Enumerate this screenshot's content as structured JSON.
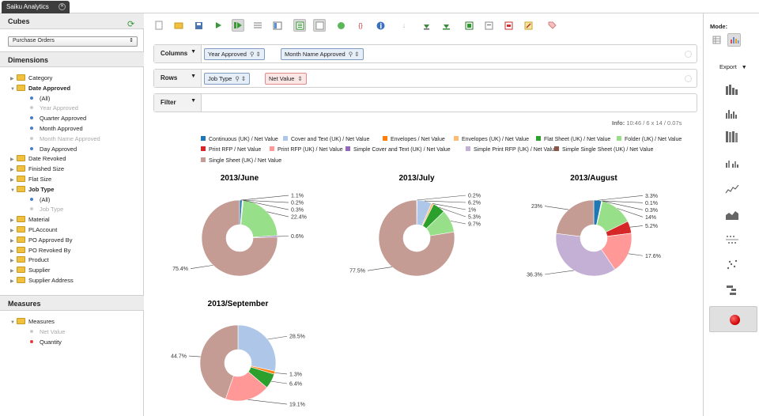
{
  "app": {
    "tab_title": "Saiku Analytics"
  },
  "cubes": {
    "title": "Cubes",
    "selected": "Purchase Orders"
  },
  "dimensions": {
    "title": "Dimensions",
    "items": [
      {
        "label": "Category",
        "type": "folder",
        "expanded": false
      },
      {
        "label": "Date Approved",
        "type": "folder",
        "expanded": true
      },
      {
        "label": "(All)",
        "type": "level",
        "enabled": true
      },
      {
        "label": "Year Approved",
        "type": "level",
        "enabled": false
      },
      {
        "label": "Quarter Approved",
        "type": "level",
        "enabled": true
      },
      {
        "label": "Month Approved",
        "type": "level",
        "enabled": true
      },
      {
        "label": "Month Name Approved",
        "type": "level",
        "enabled": false
      },
      {
        "label": "Day Approved",
        "type": "level",
        "enabled": true
      },
      {
        "label": "Date Revoked",
        "type": "folder",
        "expanded": false
      },
      {
        "label": "Finished Size",
        "type": "folder",
        "expanded": false
      },
      {
        "label": "Flat Size",
        "type": "folder",
        "expanded": false
      },
      {
        "label": "Job Type",
        "type": "folder",
        "expanded": true
      },
      {
        "label": "(All)",
        "type": "level",
        "enabled": true
      },
      {
        "label": "Job Type",
        "type": "level",
        "enabled": false
      },
      {
        "label": "Material",
        "type": "folder",
        "expanded": false
      },
      {
        "label": "PLAccount",
        "type": "folder",
        "expanded": false
      },
      {
        "label": "PO Approved By",
        "type": "folder",
        "expanded": false
      },
      {
        "label": "PO Revoked By",
        "type": "folder",
        "expanded": false
      },
      {
        "label": "Product",
        "type": "folder",
        "expanded": false
      },
      {
        "label": "Supplier",
        "type": "folder",
        "expanded": false
      },
      {
        "label": "Supplier Address",
        "type": "folder",
        "expanded": false
      }
    ]
  },
  "measures": {
    "title": "Measures",
    "folder": "Measures",
    "items": [
      {
        "label": "Net Value",
        "enabled": false
      },
      {
        "label": "Quantity",
        "enabled": true
      }
    ]
  },
  "query": {
    "columns_label": "Columns",
    "columns": [
      "Year Approved",
      "Month Name Approved"
    ],
    "rows_label": "Rows",
    "rows": [
      "Job Type",
      "Net Value"
    ],
    "filter_label": "Filter"
  },
  "info": {
    "label": "Info:",
    "text": "10:46  /  6 x 14  /  0.07s"
  },
  "colors": {
    "Continuous (UK) / Net Value": "#1f77b4",
    "Cover and Text (UK) / Net Value": "#aec7e8",
    "Envelopes / Net Value": "#ff7f0e",
    "Envelopes (UK) / Net Value": "#ffbb78",
    "Flat Sheet (UK) / Net Value": "#2ca02c",
    "Folder (UK) / Net Value": "#98df8a",
    "Print RFP / Net Value": "#d62728",
    "Print RFP (UK) / Net Value": "#ff9896",
    "Simple Cover and Text (UK) / Net Value": "#9467bd",
    "Simple Print RFP (UK) / Net Value": "#c5b0d5",
    "Simple Single Sheet (UK) / Net Value": "#8c564b",
    "Single Sheet (UK) / Net Value": "#c49c94"
  },
  "chart_data": [
    {
      "type": "pie",
      "title": "2013/June",
      "series": [
        "Continuous (UK) / Net Value",
        "Cover and Text (UK) / Net Value",
        "Envelopes (UK) / Net Value",
        "Folder (UK) / Net Value",
        "Simple Cover and Text (UK) / Net Value",
        "Single Sheet (UK) / Net Value"
      ],
      "values": [
        1.1,
        0.2,
        0.3,
        22.4,
        0.6,
        75.4
      ],
      "labels": [
        "1.1%",
        "0.2%",
        "0.3%",
        "22.4%",
        "0.6%",
        "75.4%"
      ]
    },
    {
      "type": "pie",
      "title": "2013/July",
      "series": [
        "Continuous (UK) / Net Value",
        "Cover and Text (UK) / Net Value",
        "Envelopes (UK) / Net Value",
        "Flat Sheet (UK) / Net Value",
        "Folder (UK) / Net Value",
        "Single Sheet (UK) / Net Value"
      ],
      "values": [
        0.2,
        6.2,
        1,
        5.3,
        9.7,
        77.5
      ],
      "labels": [
        "0.2%",
        "6.2%",
        "1%",
        "5.3%",
        "9.7%",
        "77.5%"
      ]
    },
    {
      "type": "pie",
      "title": "2013/August",
      "series": [
        "Continuous (UK) / Net Value",
        "Cover and Text (UK) / Net Value",
        "Envelopes (UK) / Net Value",
        "Folder (UK) / Net Value",
        "Print RFP / Net Value",
        "Print RFP (UK) / Net Value",
        "Simple Print RFP (UK) / Net Value",
        "Single Sheet (UK) / Net Value"
      ],
      "values": [
        3.3,
        0.1,
        0.3,
        14,
        5.2,
        17.6,
        36.3,
        23
      ],
      "labels": [
        "3.3%",
        "0.1%",
        "0.3%",
        "14%",
        "5.2%",
        "17.6%",
        "36.3%",
        "23%"
      ]
    },
    {
      "type": "pie",
      "title": "2013/September",
      "series": [
        "Cover and Text (UK) / Net Value",
        "Envelopes / Net Value",
        "Flat Sheet (UK) / Net Value",
        "Print RFP (UK) / Net Value",
        "Single Sheet (UK) / Net Value"
      ],
      "values": [
        28.5,
        1.3,
        6.4,
        19.1,
        44.7
      ],
      "labels": [
        "28.5%",
        "1.3%",
        "6.4%",
        "19.1%",
        "44.7%"
      ]
    }
  ],
  "right_panel": {
    "mode_label": "Mode:",
    "export_label": "Export"
  }
}
